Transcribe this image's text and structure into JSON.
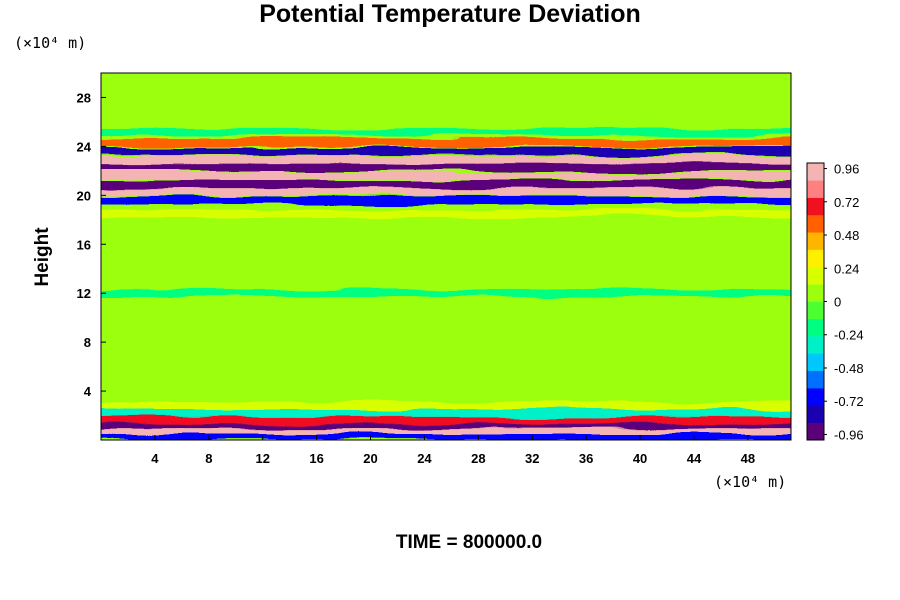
{
  "chart_data": {
    "type": "heatmap",
    "title": "Potential Temperature Deviation",
    "ylabel": "Height",
    "xlabel": "",
    "x_unit": "(×10⁴ m)",
    "y_unit": "(×10⁴ m)",
    "footer": "TIME = 800000.0",
    "xlim": [
      0,
      51.2
    ],
    "ylim": [
      0,
      30
    ],
    "x_ticks": [
      "4",
      "8",
      "12",
      "16",
      "20",
      "24",
      "28",
      "32",
      "36",
      "40",
      "44",
      "48"
    ],
    "y_ticks": [
      "4",
      "8",
      "12",
      "16",
      "20",
      "24",
      "28"
    ],
    "colorbar": {
      "min": -1.0,
      "max": 1.0,
      "labels": [
        "0.96",
        "0.72",
        "0.48",
        "0.24",
        "0",
        "-0.24",
        "-0.48",
        "-0.72",
        "-0.96"
      ],
      "colors": [
        "#5a007a",
        "#1a00b0",
        "#0000ff",
        "#0070ff",
        "#00c8ff",
        "#00f0c8",
        "#00ff80",
        "#4cff30",
        "#9cff10",
        "#d8ff00",
        "#fff000",
        "#ffb400",
        "#ff6000",
        "#f01020",
        "#ff8080",
        "#f4b4b4"
      ]
    },
    "bands": [
      {
        "height": 0.3,
        "value": -0.7
      },
      {
        "height": 0.8,
        "value": 0.9
      },
      {
        "height": 1.2,
        "value": -0.9
      },
      {
        "height": 1.6,
        "value": 0.7
      },
      {
        "height": 2.2,
        "value": -0.3
      },
      {
        "height": 2.8,
        "value": 0.2
      },
      {
        "height": 12.0,
        "value": -0.15
      },
      {
        "height": 18.5,
        "value": 0.15
      },
      {
        "height": 19.6,
        "value": -0.7
      },
      {
        "height": 20.3,
        "value": 0.95
      },
      {
        "height": 20.9,
        "value": -0.95
      },
      {
        "height": 21.6,
        "value": 0.95
      },
      {
        "height": 22.3,
        "value": -0.95
      },
      {
        "height": 22.9,
        "value": 0.95
      },
      {
        "height": 23.6,
        "value": -0.85
      },
      {
        "height": 24.3,
        "value": 0.6
      },
      {
        "height": 25.2,
        "value": -0.2
      }
    ],
    "background_value": 0.0
  }
}
